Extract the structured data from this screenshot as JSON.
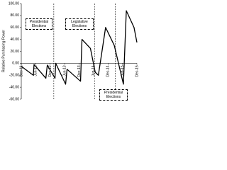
{
  "chart_data": {
    "type": "line",
    "y_label": "Relative Purchasing Power",
    "x": [
      0,
      5,
      5.3,
      10.2,
      10.8,
      14,
      14.3,
      18.4,
      19,
      24.6,
      25.2,
      28.7,
      30.7,
      32,
      35,
      38.6,
      42.4,
      43.6,
      46.8,
      48
    ],
    "values": [
      -5,
      -20,
      -2,
      -25,
      -3,
      -25,
      0,
      -35,
      -10,
      -30,
      40,
      25,
      -15,
      -20,
      60,
      30,
      -35,
      88,
      60,
      35
    ],
    "color": "#000000",
    "xlim": [
      0,
      48
    ],
    "xticks": [
      {
        "value": 0,
        "label": "Dec-11"
      },
      {
        "value": 6,
        "label": "Jun-12"
      },
      {
        "value": 12,
        "label": "Dec-12"
      },
      {
        "value": 18,
        "label": "Jun-13"
      },
      {
        "value": 24,
        "label": "Dec-13"
      },
      {
        "value": 30,
        "label": "Jun-14"
      },
      {
        "value": 36,
        "label": "Dec-14"
      },
      {
        "value": 42,
        "label": "Jun-15"
      },
      {
        "value": 48,
        "label": "Dec-15"
      }
    ],
    "ylim": [
      -60,
      100
    ],
    "yticks": [
      {
        "value": -60,
        "label": "-60.00"
      },
      {
        "value": -40,
        "label": "-40.00"
      },
      {
        "value": -20,
        "label": "-20.00"
      },
      {
        "value": 0,
        "label": "0.00"
      },
      {
        "value": 20,
        "label": "20.00"
      },
      {
        "value": 40,
        "label": "40.00"
      },
      {
        "value": 60,
        "label": "60.00"
      },
      {
        "value": 80,
        "label": "80.00"
      },
      {
        "value": 100,
        "label": "100.00"
      }
    ],
    "events": [
      {
        "x": 13.5,
        "label": "Presidential Elections"
      },
      {
        "x": 30.4,
        "label": "Legislative Elections"
      },
      {
        "x": 39,
        "label": "Presidential Elections"
      }
    ]
  }
}
